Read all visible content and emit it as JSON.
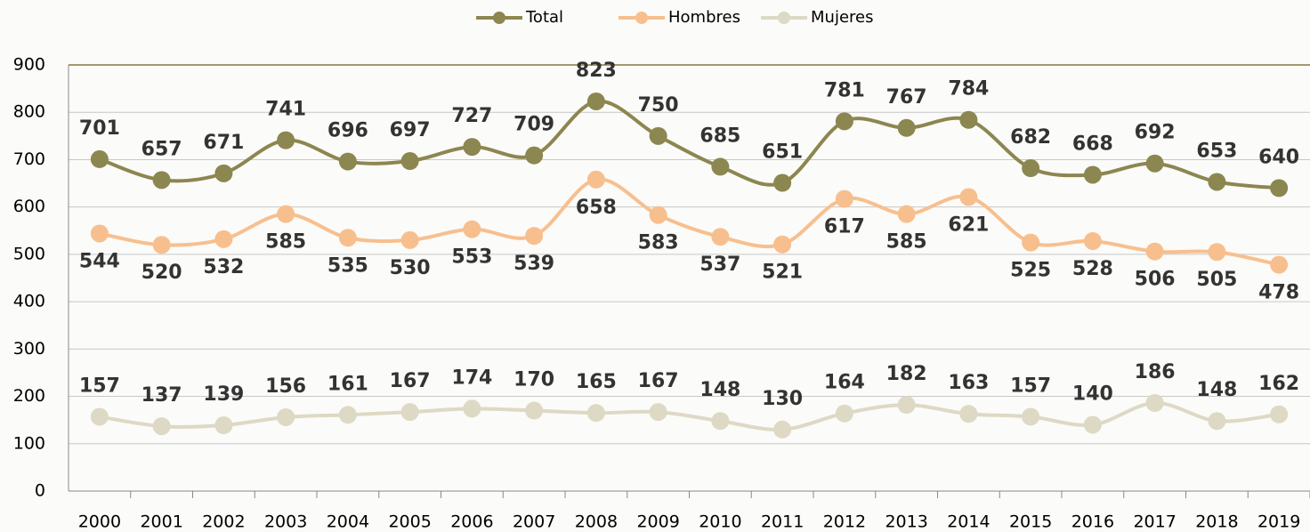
{
  "chart_data": {
    "type": "line",
    "categories": [
      "2000",
      "2001",
      "2002",
      "2003",
      "2004",
      "2005",
      "2006",
      "2007",
      "2008",
      "2009",
      "2010",
      "2011",
      "2012",
      "2013",
      "2014",
      "2015",
      "2016",
      "2017",
      "2018",
      "2019"
    ],
    "series": [
      {
        "name": "Total",
        "color": "#8c8650",
        "label_pos": "above",
        "values": [
          701,
          657,
          671,
          741,
          696,
          697,
          727,
          709,
          823,
          750,
          685,
          651,
          781,
          767,
          784,
          682,
          668,
          692,
          653,
          640
        ]
      },
      {
        "name": "Hombres",
        "color": "#f8bf8e",
        "label_pos": "below",
        "values": [
          544,
          520,
          532,
          585,
          535,
          530,
          553,
          539,
          658,
          583,
          537,
          521,
          617,
          585,
          621,
          525,
          528,
          506,
          505,
          478
        ]
      },
      {
        "name": "Mujeres",
        "color": "#ddd9c4",
        "label_pos": "above",
        "values": [
          157,
          137,
          139,
          156,
          161,
          167,
          174,
          170,
          165,
          167,
          148,
          130,
          164,
          182,
          163,
          157,
          140,
          186,
          148,
          162
        ]
      }
    ],
    "ylim": [
      0,
      900
    ],
    "yticks": [
      0,
      100,
      200,
      300,
      400,
      500,
      600,
      700,
      800,
      900
    ],
    "grid": true,
    "legend": "top"
  }
}
